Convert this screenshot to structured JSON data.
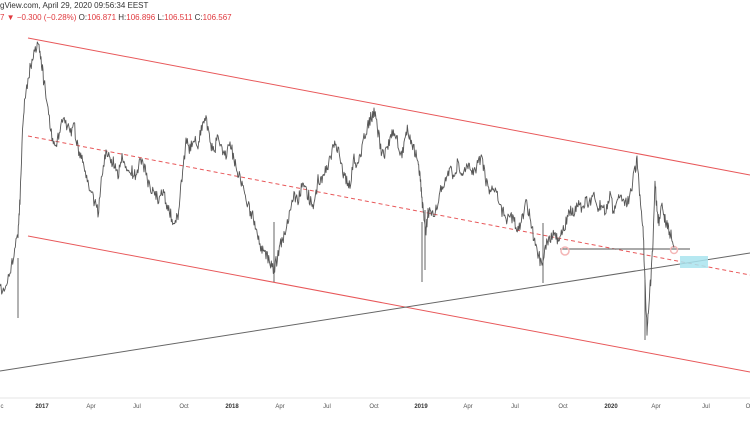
{
  "header": {
    "source_date": "gView.com, April 29, 2020 09:56:34 EEST"
  },
  "ohlc": {
    "change_prefix": "7 ▼",
    "change": "−0.300 (−0.28%)",
    "o_label": "O:",
    "o_value": "106.871",
    "h_label": "H:",
    "h_value": "106.896",
    "l_label": "L:",
    "l_value": "106.511",
    "c_label": "C:",
    "c_value": "106.567"
  },
  "colors": {
    "price": "#555555",
    "channel": "#e8585a",
    "trendline": "#666666",
    "highlight": "#a9e4ee",
    "circle": "#f4b6b6"
  },
  "chart_data": {
    "type": "line",
    "x_axis_labels": [
      {
        "label": "c",
        "major": false
      },
      {
        "label": "2017",
        "major": true
      },
      {
        "label": "Apr",
        "major": false
      },
      {
        "label": "Jul",
        "major": false
      },
      {
        "label": "Oct",
        "major": false
      },
      {
        "label": "2018",
        "major": true
      },
      {
        "label": "Apr",
        "major": false
      },
      {
        "label": "Jul",
        "major": false
      },
      {
        "label": "Oct",
        "major": false
      },
      {
        "label": "2019",
        "major": true
      },
      {
        "label": "Apr",
        "major": false
      },
      {
        "label": "Jul",
        "major": false
      },
      {
        "label": "Oct",
        "major": false
      },
      {
        "label": "2020",
        "major": true
      },
      {
        "label": "Apr",
        "major": false
      },
      {
        "label": "Jul",
        "major": false
      },
      {
        "label": "O",
        "major": false
      }
    ],
    "grid": false,
    "legend": "none"
  }
}
